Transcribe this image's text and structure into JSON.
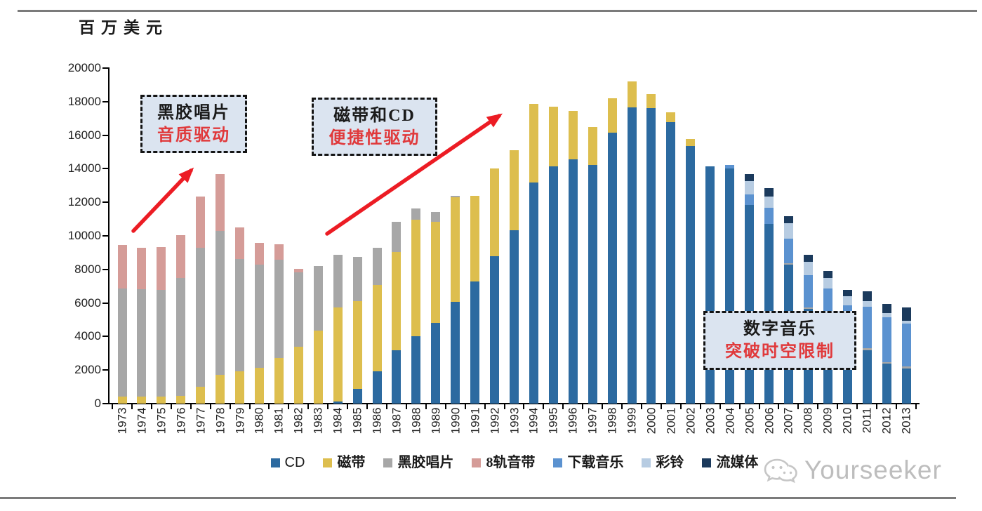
{
  "page": {
    "unit_label": "百万美元",
    "watermark_text": "Yourseeker"
  },
  "chart_data": {
    "type": "bar",
    "stacked": true,
    "title": "",
    "ylabel": "百万美元",
    "xlabel": "",
    "ylim": [
      0,
      20000
    ],
    "grid": false,
    "legend_position": "bottom",
    "yticks": [
      0,
      2000,
      4000,
      6000,
      8000,
      10000,
      12000,
      14000,
      16000,
      18000,
      20000
    ],
    "categories": [
      1973,
      1974,
      1975,
      1976,
      1977,
      1978,
      1979,
      1980,
      1981,
      1982,
      1983,
      1984,
      1985,
      1986,
      1987,
      1988,
      1989,
      1990,
      1991,
      1992,
      1993,
      1994,
      1995,
      1996,
      1997,
      1998,
      1999,
      2000,
      2001,
      2002,
      2003,
      2004,
      2005,
      2006,
      2007,
      2008,
      2009,
      2010,
      2011,
      2012,
      2013
    ],
    "series": [
      {
        "key": "cd",
        "name": "CD",
        "color": "#2c6aa0",
        "values": [
          0,
          0,
          0,
          0,
          0,
          0,
          0,
          0,
          0,
          0,
          0,
          140,
          870,
          1930,
          3170,
          4030,
          4810,
          6070,
          7280,
          8780,
          10340,
          13160,
          14150,
          14560,
          14210,
          16150,
          17670,
          17630,
          16760,
          15360,
          14150,
          14000,
          11850,
          10710,
          8280,
          5650,
          4650,
          3900,
          3200,
          2400,
          2100
        ]
      },
      {
        "key": "cassette",
        "name": "磁带",
        "color": "#ddbe4e",
        "values": [
          400,
          400,
          400,
          450,
          990,
          1730,
          1940,
          2150,
          2720,
          3380,
          4360,
          5590,
          5240,
          5150,
          5850,
          6920,
          6040,
          6220,
          5120,
          5220,
          4760,
          4700,
          3530,
          2880,
          2270,
          2070,
          1530,
          840,
          620,
          430,
          0,
          0,
          0,
          0,
          0,
          0,
          0,
          0,
          0,
          0,
          0
        ]
      },
      {
        "key": "vinyl",
        "name": "黑胶唱片",
        "color": "#a7a7a7",
        "values": [
          6470,
          6440,
          6390,
          7040,
          8280,
          8570,
          6670,
          6130,
          5850,
          4450,
          3840,
          3130,
          2630,
          2230,
          1830,
          680,
          575,
          100,
          0,
          0,
          0,
          0,
          0,
          0,
          0,
          0,
          0,
          0,
          0,
          0,
          0,
          0,
          0,
          0,
          100,
          80,
          90,
          90,
          90,
          90,
          100
        ]
      },
      {
        "key": "8track",
        "name": "8轨音带",
        "color": "#d59c98",
        "values": [
          2570,
          2470,
          2550,
          2560,
          3090,
          3380,
          1890,
          1320,
          910,
          200,
          0,
          0,
          0,
          0,
          0,
          0,
          0,
          0,
          0,
          0,
          0,
          0,
          0,
          0,
          0,
          0,
          0,
          0,
          0,
          0,
          0,
          0,
          0,
          0,
          0,
          0,
          0,
          0,
          0,
          0,
          0
        ]
      },
      {
        "key": "downloads",
        "name": "下载音乐",
        "color": "#5b92d0",
        "values": [
          0,
          0,
          0,
          0,
          0,
          0,
          0,
          0,
          0,
          0,
          0,
          0,
          0,
          0,
          0,
          0,
          0,
          0,
          0,
          0,
          0,
          0,
          0,
          0,
          0,
          0,
          0,
          0,
          0,
          0,
          0,
          210,
          600,
          960,
          1470,
          1920,
          2130,
          1875,
          2500,
          2640,
          2550
        ]
      },
      {
        "key": "ringtones",
        "name": "彩铃",
        "color": "#b7cce2",
        "values": [
          0,
          0,
          0,
          0,
          0,
          0,
          0,
          0,
          0,
          0,
          0,
          0,
          0,
          0,
          0,
          0,
          0,
          0,
          0,
          0,
          0,
          0,
          0,
          0,
          0,
          0,
          0,
          0,
          0,
          0,
          0,
          0,
          800,
          690,
          910,
          800,
          610,
          525,
          320,
          270,
          190
        ]
      },
      {
        "key": "streaming",
        "name": "流媒体",
        "color": "#1b3a5c",
        "values": [
          0,
          0,
          0,
          0,
          0,
          0,
          0,
          0,
          0,
          0,
          0,
          0,
          0,
          0,
          0,
          0,
          0,
          0,
          0,
          0,
          0,
          0,
          0,
          0,
          0,
          0,
          0,
          0,
          0,
          0,
          0,
          0,
          450,
          480,
          405,
          410,
          420,
          380,
          580,
          550,
          790
        ]
      }
    ]
  },
  "annotations": [
    {
      "line1": "黑胶唱片",
      "line2": "音质驱动"
    },
    {
      "line1": "磁带和CD",
      "line2": "便捷性驱动"
    },
    {
      "line1": "数字音乐",
      "line2": "突破时空限制"
    }
  ],
  "colors": {
    "arrow": "#ec1c24",
    "annotation_accent": "#e0393b",
    "annotation_fill": "#dbe4f0",
    "rule": "#7b7b7b"
  }
}
